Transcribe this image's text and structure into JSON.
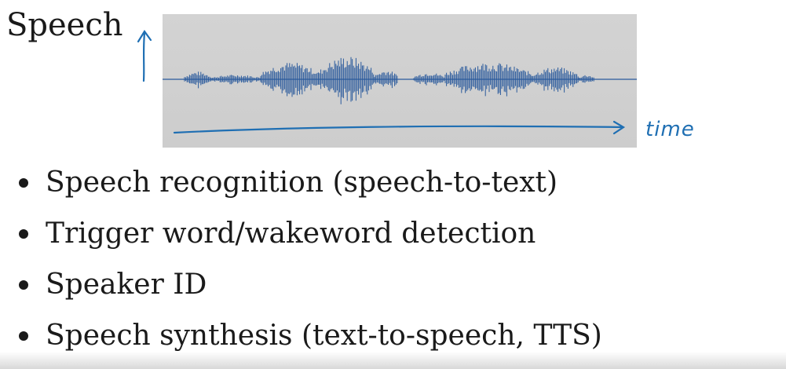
{
  "slide": {
    "title": "Speech",
    "time_label": "time",
    "bullets": [
      "Speech recognition (speech-to-text)",
      "Trigger word/wakeword detection",
      "Speaker ID",
      "Speech synthesis (text-to-speech, TTS)"
    ]
  },
  "colors": {
    "waveform": "#2a5a9c",
    "annotation": "#1f6fb3",
    "panel": "#d0d0d0"
  },
  "icons": [
    "amplitude-arrow-icon",
    "time-arrow-icon"
  ]
}
